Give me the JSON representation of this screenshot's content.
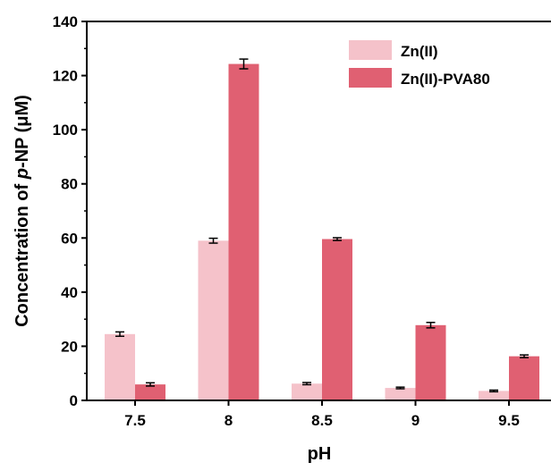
{
  "chart_data": {
    "type": "bar",
    "categories": [
      "7.5",
      "8",
      "8.5",
      "9",
      "9.5"
    ],
    "series": [
      {
        "name": "Zn(II)",
        "color": "#f5c2ca",
        "values": [
          24.5,
          59.0,
          6.2,
          4.6,
          3.5
        ],
        "errors": [
          0.8,
          0.9,
          0.4,
          0.3,
          0.3
        ]
      },
      {
        "name": "Zn(II)-PVA80",
        "color": "#e06072",
        "values": [
          5.9,
          124.3,
          59.6,
          27.8,
          16.3
        ],
        "errors": [
          0.6,
          1.8,
          0.5,
          1.0,
          0.5
        ]
      }
    ],
    "xlabel": "pH",
    "ylabel_parts": [
      "Concentration of ",
      "p",
      "-NP (μM)"
    ],
    "ylim": [
      0,
      140
    ],
    "yticks": [
      0,
      20,
      40,
      60,
      80,
      100,
      120,
      140
    ],
    "legend_position": "top-right",
    "grid": false
  }
}
